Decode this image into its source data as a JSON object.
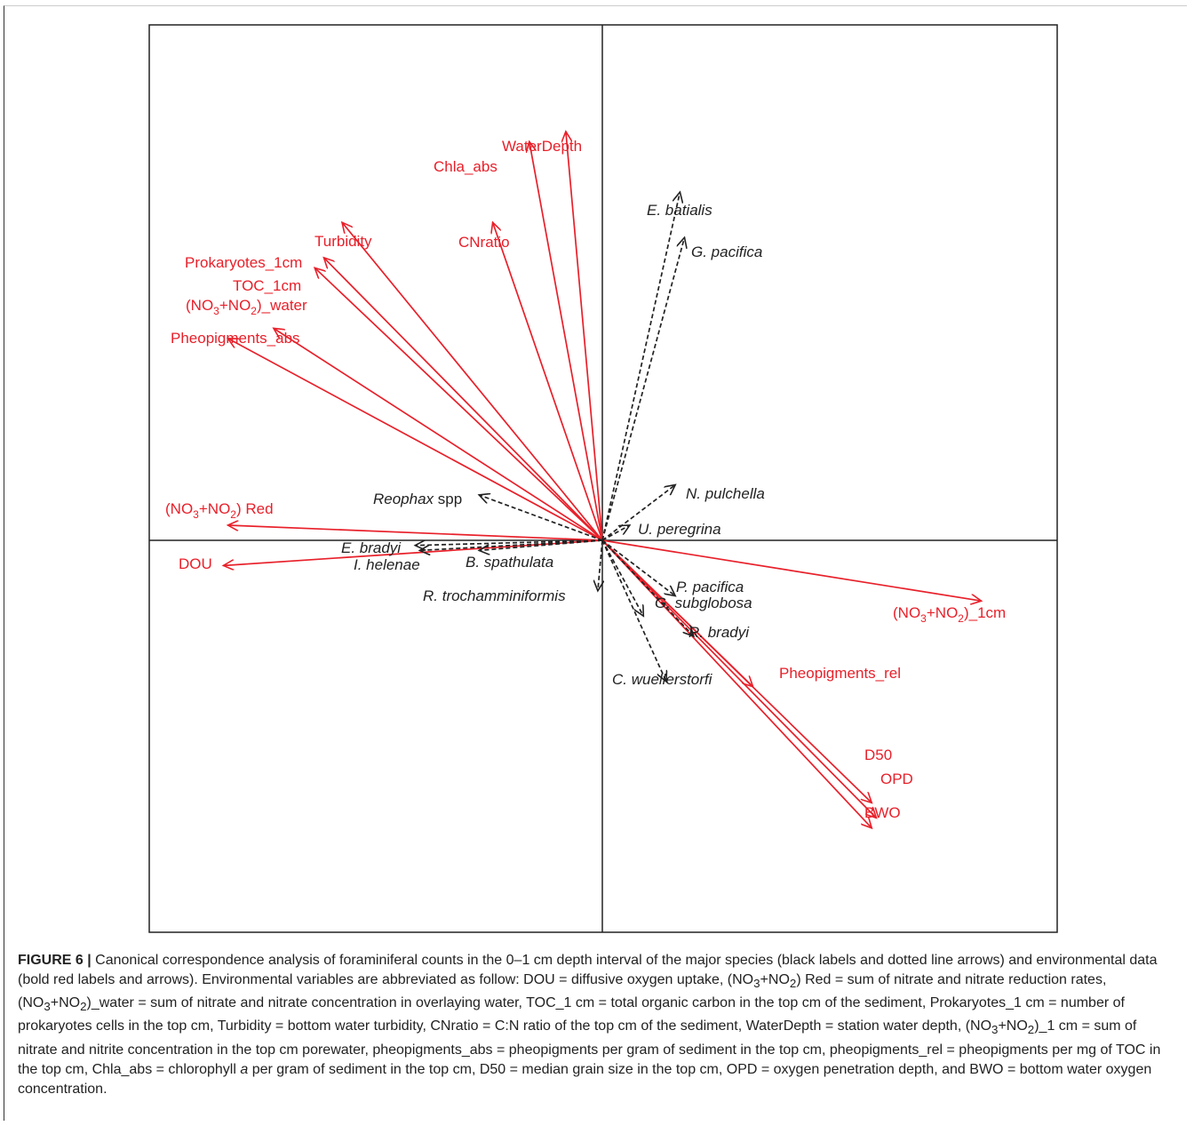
{
  "chart_data": {
    "type": "scatter",
    "title": "",
    "xlabel": "",
    "ylabel": "",
    "xlim": [
      -1.0,
      1.0
    ],
    "ylim": [
      -1.0,
      1.0
    ],
    "grid": false,
    "colors": {
      "environmental": "#e8202a",
      "species": "#222222"
    },
    "environmental_vectors": [
      {
        "name": "WaterDepth",
        "x": -0.08,
        "y": 0.81
      },
      {
        "name": "Chla_abs",
        "x": -0.16,
        "y": 0.79
      },
      {
        "name": "CNratio",
        "x": -0.24,
        "y": 0.63
      },
      {
        "name": "Turbidity",
        "x": -0.57,
        "y": 0.63
      },
      {
        "name": "Prokaryotes_1cm",
        "x": -0.61,
        "y": 0.56
      },
      {
        "name": "TOC_1cm",
        "x": -0.63,
        "y": 0.54
      },
      {
        "name": "(NO3+NO2)_water",
        "x": -0.72,
        "y": 0.42
      },
      {
        "name": "Pheopigments_abs",
        "x": -0.82,
        "y": 0.4
      },
      {
        "name": "(NO3+NO2) Red",
        "x": -0.82,
        "y": 0.03
      },
      {
        "name": "DOU",
        "x": -0.83,
        "y": -0.05
      },
      {
        "name": "(NO3+NO2)_1cm",
        "x": 0.83,
        "y": -0.12
      },
      {
        "name": "Pheopigments_rel",
        "x": 0.33,
        "y": -0.29
      },
      {
        "name": "D50",
        "x": 0.59,
        "y": -0.52
      },
      {
        "name": "OPD",
        "x": 0.6,
        "y": -0.55
      },
      {
        "name": "BWO",
        "x": 0.59,
        "y": -0.57
      }
    ],
    "species_vectors": [
      {
        "name": "E. batialis",
        "x": 0.17,
        "y": 0.69
      },
      {
        "name": "G. pacifica",
        "x": 0.18,
        "y": 0.6
      },
      {
        "name": "N. pulchella",
        "x": 0.16,
        "y": 0.11
      },
      {
        "name": "U. peregrina",
        "x": 0.06,
        "y": 0.03
      },
      {
        "name": "Reophax spp",
        "x": -0.27,
        "y": 0.09
      },
      {
        "name": "E. bradyi",
        "x": -0.41,
        "y": -0.01
      },
      {
        "name": "I. helenae",
        "x": -0.4,
        "y": -0.02
      },
      {
        "name": "B. spathulata",
        "x": -0.27,
        "y": -0.02
      },
      {
        "name": "R. trochamminiformis",
        "x": -0.01,
        "y": -0.1
      },
      {
        "name": "P. pacifica",
        "x": 0.16,
        "y": -0.11
      },
      {
        "name": "G. subglobosa",
        "x": 0.09,
        "y": -0.15
      },
      {
        "name": "R. bradyi",
        "x": 0.2,
        "y": -0.19
      },
      {
        "name": "C. wuellerstorfi",
        "x": 0.14,
        "y": -0.28
      }
    ]
  },
  "labels": {
    "WaterDepth": "WaterDepth",
    "Chla_abs": "Chla_abs",
    "CNratio": "CNratio",
    "Turbidity": "Turbidity",
    "Prokaryotes_1cm": "Prokaryotes_1cm",
    "TOC_1cm": "TOC_1cm",
    "NO3NO2_water_a": "(NO",
    "NO3NO2_water_b": "3",
    "NO3NO2_water_c": "+NO",
    "NO3NO2_water_d": "2",
    "NO3NO2_water_e": ")_water",
    "Pheopigments_abs": "Pheopigments_abs",
    "NO3NO2_red_a": "(NO",
    "NO3NO2_red_b": "3",
    "NO3NO2_red_c": "+NO",
    "NO3NO2_red_d": "2",
    "NO3NO2_red_e": ") Red",
    "DOU": "DOU",
    "NO3NO2_1cm_a": "(NO",
    "NO3NO2_1cm_b": "3",
    "NO3NO2_1cm_c": "+NO",
    "NO3NO2_1cm_d": "2",
    "NO3NO2_1cm_e": ")_1cm",
    "Pheopigments_rel": "Pheopigments_rel",
    "D50": "D50",
    "OPD": "OPD",
    "BWO": "BWO",
    "E_batialis": "E. batialis",
    "G_pacifica": "G. pacifica",
    "N_pulchella": "N. pulchella",
    "U_peregrina": "U. peregrina",
    "Reophax": "Reophax",
    "Reophax_spp": " spp",
    "E_bradyi": "E. bradyi",
    "I_helenae": "I. helenae",
    "B_spathulata": "B. spathulata",
    "R_trochamminiformis": "R. trochamminiformis",
    "P_pacifica": "P. pacifica",
    "G_subglobosa": "G. subglobosa",
    "R_bradyi": "R. bradyi",
    "C_wuellerstorfi": "C. wuellerstorfi"
  },
  "caption": {
    "label": "FIGURE 6 |",
    "text_1": " Canonical correspondence analysis of foraminiferal counts in the 0–1 cm depth interval of the major species (black labels and dotted line arrows) and environmental data (bold red labels and arrows). Environmental variables are abbreviated as follow: DOU = diffusive oxygen uptake, (NO",
    "sub_1": "3",
    "text_2": "+NO",
    "sub_2": "2",
    "text_3": ") Red = sum of nitrate and nitrate reduction rates, (NO",
    "sub_3": "3",
    "text_4": "+NO",
    "sub_4": "2",
    "text_5": ")_water = sum of nitrate and nitrate concentration in overlaying water, TOC_1 cm = total organic carbon in the top cm of the sediment, Prokaryotes_1 cm = number of prokaryotes cells in the top cm, Turbidity = bottom water turbidity, CNratio = C:N ratio of the top cm of the sediment, WaterDepth = station water depth, (NO",
    "sub_5": "3",
    "text_6": "+NO",
    "sub_6": "2",
    "text_7": ")_1 cm = sum of nitrate and nitrite concentration in the top cm porewater, pheopigments_abs = pheopigments per gram of sediment in the top cm, pheopigments_rel = pheopigments per mg of TOC in the top cm, Chla_abs = chlorophyll ",
    "ital_a": "a",
    "text_8": " per gram of sediment in the top cm, D50 = median grain size in the top cm, OPD = oxygen penetration depth, and BWO = bottom water oxygen concentration."
  }
}
